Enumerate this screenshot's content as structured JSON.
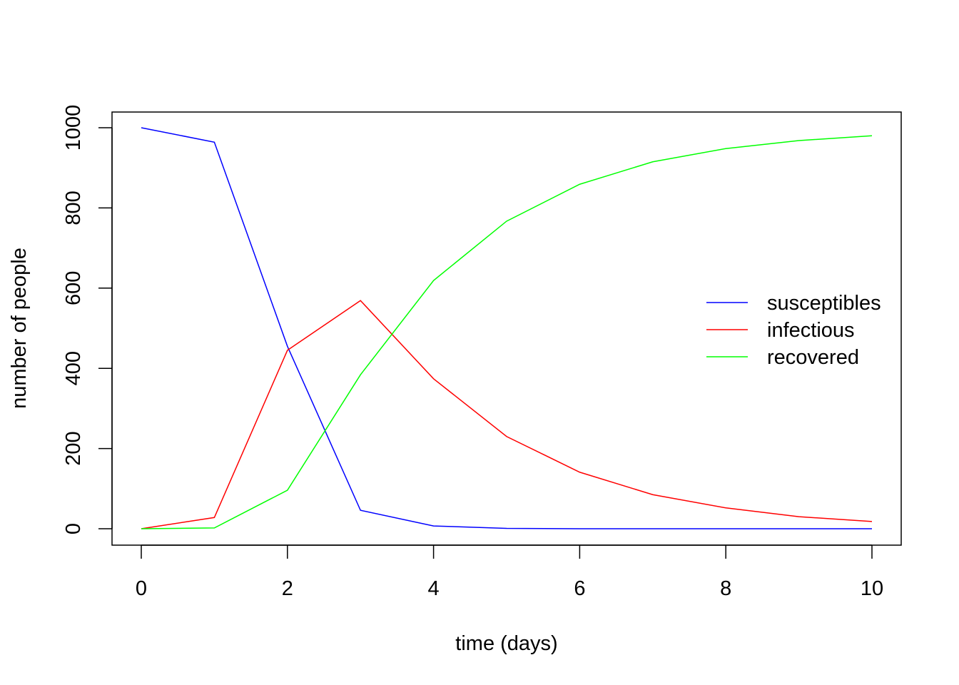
{
  "chart_data": {
    "type": "line",
    "title": "",
    "xlabel": "time (days)",
    "ylabel": "number of people",
    "xlim": [
      -0.2,
      10.2
    ],
    "ylim": [
      -40,
      1040
    ],
    "xticks": [
      0,
      2,
      4,
      6,
      8,
      10
    ],
    "yticks": [
      0,
      200,
      400,
      600,
      800,
      1000
    ],
    "grid": false,
    "legend_position": "right",
    "x": [
      0,
      1,
      2,
      3,
      4,
      5,
      6,
      7,
      8,
      9,
      10
    ],
    "series": [
      {
        "name": "susceptibles",
        "color": "#0000ff",
        "values": [
          1000,
          964,
          455,
          46,
          7,
          1,
          0,
          0,
          0,
          0,
          0
        ]
      },
      {
        "name": "infectious",
        "color": "#ff0000",
        "values": [
          0,
          28,
          445,
          569,
          374,
          230,
          141,
          85,
          52,
          30,
          18
        ]
      },
      {
        "name": "recovered",
        "color": "#00ff00",
        "values": [
          0,
          2,
          96,
          384,
          619,
          767,
          859,
          915,
          948,
          968,
          980
        ]
      }
    ]
  }
}
